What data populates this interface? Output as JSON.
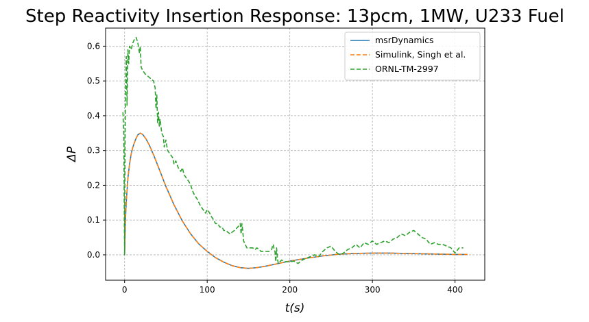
{
  "chart_data": {
    "type": "line",
    "title": "Step Reactivity Insertion Response: 13pcm, 1MW, U233 Fuel",
    "xlabel": "t(s)",
    "ylabel": "ΔP",
    "xlim": [
      -23,
      436
    ],
    "ylim": [
      -0.073,
      0.652
    ],
    "xticks": [
      0,
      100,
      200,
      300,
      400
    ],
    "yticks": [
      0.0,
      0.1,
      0.2,
      0.3,
      0.4,
      0.5,
      0.6
    ],
    "xtick_labels": [
      "0",
      "100",
      "200",
      "300",
      "400"
    ],
    "ytick_labels": [
      "0.0",
      "0.1",
      "0.2",
      "0.3",
      "0.4",
      "0.5",
      "0.6"
    ],
    "grid": true,
    "legend_position": "upper right",
    "series": [
      {
        "name": "msrDynamics",
        "color": "#1f77b4",
        "style": "solid",
        "x": [
          0,
          1,
          2,
          4,
          6,
          8,
          10,
          13,
          16,
          19,
          22,
          26,
          30,
          35,
          40,
          50,
          60,
          70,
          80,
          90,
          100,
          110,
          120,
          130,
          140,
          150,
          160,
          170,
          180,
          190,
          200,
          220,
          240,
          260,
          280,
          300,
          320,
          340,
          360,
          380,
          400,
          415
        ],
        "y": [
          0.0,
          0.1,
          0.15,
          0.22,
          0.26,
          0.29,
          0.31,
          0.33,
          0.345,
          0.35,
          0.346,
          0.333,
          0.315,
          0.288,
          0.258,
          0.197,
          0.143,
          0.097,
          0.06,
          0.031,
          0.01,
          -0.008,
          -0.021,
          -0.031,
          -0.037,
          -0.039,
          -0.037,
          -0.033,
          -0.028,
          -0.023,
          -0.018,
          -0.01,
          -0.003,
          0.002,
          0.004,
          0.005,
          0.005,
          0.004,
          0.003,
          0.002,
          0.001,
          0.001
        ]
      },
      {
        "name": "Simulink, Singh et al.",
        "color": "#ff7f0e",
        "style": "dashed",
        "x": [
          0,
          1,
          2,
          4,
          6,
          8,
          10,
          13,
          16,
          19,
          22,
          26,
          30,
          35,
          40,
          50,
          60,
          70,
          80,
          90,
          100,
          110,
          120,
          130,
          140,
          150,
          160,
          170,
          180,
          190,
          200,
          220,
          240,
          260,
          280,
          300,
          320,
          340,
          360,
          380,
          400,
          415
        ],
        "y": [
          0.0,
          0.1,
          0.15,
          0.22,
          0.26,
          0.29,
          0.31,
          0.33,
          0.345,
          0.35,
          0.346,
          0.333,
          0.315,
          0.288,
          0.258,
          0.197,
          0.143,
          0.097,
          0.06,
          0.031,
          0.01,
          -0.008,
          -0.021,
          -0.031,
          -0.037,
          -0.039,
          -0.037,
          -0.033,
          -0.028,
          -0.023,
          -0.018,
          -0.01,
          -0.003,
          0.002,
          0.004,
          0.005,
          0.005,
          0.004,
          0.003,
          0.002,
          0.001,
          0.001
        ]
      },
      {
        "name": "ORNL-TM-2997",
        "color": "#2ca02c",
        "style": "dashed",
        "x": [
          -2,
          -1,
          0,
          0.5,
          1,
          2,
          3,
          4,
          5,
          6,
          8,
          10,
          12,
          14,
          16,
          18,
          19,
          20,
          22,
          25,
          30,
          35,
          37,
          38,
          39,
          40,
          41,
          42,
          43,
          45,
          47,
          48,
          50,
          52,
          55,
          58,
          60,
          62,
          65,
          68,
          70,
          72,
          75,
          78,
          80,
          83,
          85,
          88,
          90,
          92,
          95,
          98,
          100,
          103,
          105,
          108,
          110,
          113,
          115,
          118,
          120,
          123,
          125,
          128,
          130,
          133,
          135,
          137,
          139,
          140,
          141,
          142,
          143,
          144,
          146,
          148,
          150,
          153,
          155,
          158,
          160,
          163,
          165,
          168,
          170,
          173,
          175,
          178,
          179,
          180,
          181,
          182,
          183,
          184,
          185,
          186,
          190,
          195,
          200,
          205,
          210,
          215,
          220,
          225,
          230,
          235,
          240,
          245,
          250,
          255,
          260,
          265,
          270,
          275,
          280,
          285,
          290,
          295,
          300,
          305,
          310,
          315,
          320,
          325,
          330,
          335,
          340,
          345,
          350,
          355,
          360,
          365,
          370,
          375,
          380,
          385,
          390,
          395,
          400,
          405,
          410
        ],
        "y": [
          0.41,
          0.35,
          0.0,
          0.3,
          0.45,
          0.57,
          0.43,
          0.59,
          0.55,
          0.6,
          0.59,
          0.61,
          0.62,
          0.625,
          0.61,
          0.58,
          0.6,
          0.54,
          0.53,
          0.52,
          0.51,
          0.5,
          0.48,
          0.42,
          0.46,
          0.38,
          0.41,
          0.37,
          0.39,
          0.35,
          0.34,
          0.31,
          0.33,
          0.3,
          0.29,
          0.28,
          0.26,
          0.27,
          0.25,
          0.24,
          0.25,
          0.23,
          0.22,
          0.21,
          0.2,
          0.18,
          0.17,
          0.16,
          0.15,
          0.14,
          0.13,
          0.12,
          0.13,
          0.12,
          0.11,
          0.1,
          0.09,
          0.09,
          0.08,
          0.08,
          0.07,
          0.07,
          0.065,
          0.06,
          0.065,
          0.07,
          0.075,
          0.08,
          0.085,
          0.09,
          0.06,
          0.09,
          0.07,
          0.04,
          0.03,
          0.02,
          0.02,
          0.02,
          0.02,
          0.015,
          0.02,
          0.015,
          0.01,
          0.01,
          0.01,
          0.01,
          0.01,
          0.015,
          0.025,
          0.03,
          0.015,
          0.01,
          -0.02,
          0.02,
          -0.01,
          -0.025,
          -0.015,
          -0.02,
          -0.02,
          -0.018,
          -0.025,
          -0.015,
          -0.01,
          -0.005,
          0.0,
          -0.005,
          0.01,
          0.02,
          0.025,
          0.01,
          0.0,
          0.005,
          0.015,
          0.02,
          0.03,
          0.02,
          0.035,
          0.03,
          0.04,
          0.03,
          0.035,
          0.04,
          0.035,
          0.045,
          0.05,
          0.06,
          0.055,
          0.065,
          0.07,
          0.06,
          0.05,
          0.045,
          0.03,
          0.035,
          0.03,
          0.03,
          0.025,
          0.02,
          0.005,
          0.02,
          0.02
        ]
      }
    ]
  }
}
